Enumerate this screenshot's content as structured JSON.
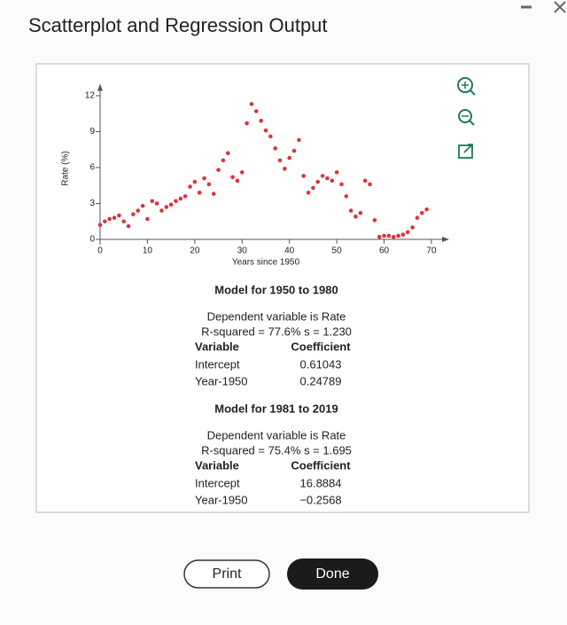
{
  "header": {
    "title": "Scatterplot and Regression Output"
  },
  "chart_data": {
    "type": "scatter",
    "xlabel": "Years since 1950",
    "ylabel": "Rate (%)",
    "x": [
      0,
      1,
      2,
      3,
      4,
      5,
      6,
      7,
      8,
      9,
      10,
      11,
      12,
      13,
      14,
      15,
      16,
      17,
      18,
      19,
      20,
      21,
      22,
      23,
      24,
      25,
      26,
      27,
      28,
      29,
      30,
      31,
      32,
      33,
      34,
      35,
      36,
      37,
      38,
      39,
      40,
      41,
      42,
      43,
      44,
      45,
      46,
      47,
      48,
      49,
      50,
      51,
      52,
      53,
      54,
      55,
      56,
      57,
      58,
      59,
      60,
      61,
      62,
      63,
      64,
      65,
      66,
      67,
      68,
      69
    ],
    "y": [
      1.2,
      1.5,
      1.7,
      1.8,
      2.0,
      1.5,
      1.1,
      2.1,
      2.4,
      2.8,
      1.7,
      3.2,
      3.0,
      2.4,
      2.7,
      2.9,
      3.2,
      3.4,
      3.6,
      4.4,
      4.8,
      3.9,
      5.1,
      4.6,
      3.8,
      5.8,
      6.6,
      7.2,
      5.2,
      4.9,
      5.6,
      9.7,
      11.3,
      10.7,
      9.9,
      9.1,
      8.6,
      7.6,
      6.6,
      5.9,
      6.8,
      7.4,
      8.3,
      5.3,
      3.9,
      4.3,
      4.8,
      5.3,
      5.1,
      4.9,
      5.6,
      4.6,
      3.6,
      2.4,
      1.9,
      2.2,
      4.9,
      4.6,
      1.6,
      0.2,
      0.3,
      0.3,
      0.2,
      0.3,
      0.4,
      0.6,
      1.0,
      1.8,
      2.2,
      2.5
    ],
    "color": "#d9353c",
    "xlim": [
      0,
      73
    ],
    "ylim": [
      0,
      12.7
    ],
    "xticks": [
      0,
      10,
      20,
      30,
      40,
      50,
      60,
      70
    ],
    "yticks": [
      0,
      3,
      6,
      9,
      12
    ]
  },
  "models": [
    {
      "title": "Model for 1950 to 1980",
      "lines": [
        "Dependent variable is Rate",
        "R-squared = 77.6%   s = 1.230"
      ],
      "header": [
        "Variable",
        "Coefficient"
      ],
      "rows": [
        [
          "Intercept",
          "0.61043"
        ],
        [
          "Year-1950",
          "0.24789"
        ]
      ]
    },
    {
      "title": "Model for 1981 to 2019",
      "lines": [
        "Dependent variable is Rate",
        "R-squared = 75.4%   s = 1.695"
      ],
      "header": [
        "Variable",
        "Coefficient"
      ],
      "rows": [
        [
          "Intercept",
          "16.8884"
        ],
        [
          "Year-1950",
          "−0.2568"
        ]
      ]
    }
  ],
  "buttons": [
    "Print",
    "Done"
  ]
}
